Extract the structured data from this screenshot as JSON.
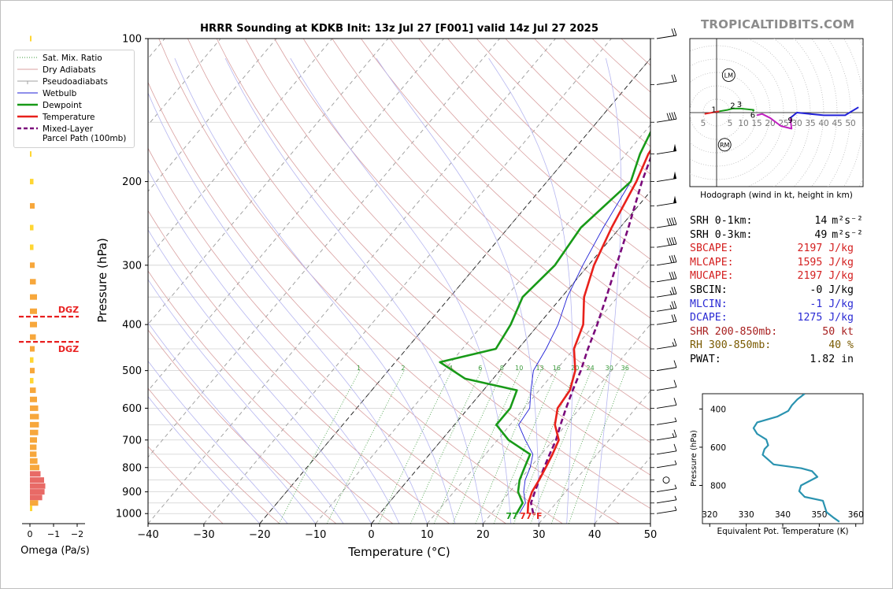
{
  "brand": "TROPICALTIDBITS.COM",
  "chart_data": [
    {
      "type": "line",
      "title": "HRRR Sounding at KDKB Init: 13z Jul 27 [F001] valid 14z Jul 27 2025",
      "xlabel": "Temperature (°C)",
      "ylabel": "Pressure (hPa)",
      "xlim": [
        -40,
        50
      ],
      "ylim": [
        1050,
        100
      ],
      "y_scale": "log",
      "skew": "skew-T log-p",
      "x_ticks": [
        "−40",
        "−30",
        "−20",
        "−10",
        "0",
        "10",
        "20",
        "30",
        "40",
        "50"
      ],
      "y_ticks": [
        "100",
        "200",
        "300",
        "400",
        "500",
        "600",
        "700",
        "800",
        "900",
        "1000"
      ],
      "grid": true,
      "legend_position": "top-left",
      "legend": [
        "Sat. Mix. Ratio",
        "Dry Adiabats",
        "Pseudoadiabats",
        "Wetbulb",
        "Dewpoint",
        "Temperature",
        "Mixed-Layer\nParcel Path (100mb)"
      ],
      "mixing_ratio_labels": [
        "1",
        "2",
        "4",
        "6",
        "8",
        "10",
        "13",
        "16",
        "20",
        "24",
        "30",
        "36"
      ],
      "surface_labels": {
        "dewpoint": "77",
        "temperature": "77",
        "unit": "°F"
      },
      "colors": {
        "temperature": "#e8211b",
        "dewpoint": "#189a18",
        "wetbulb": "#1f1fd6",
        "parcel": "#7a0a7a",
        "dry_adiabat": "#d9a0a0",
        "pseudoadiabat": "#a8a8a8",
        "mixing_ratio": "#3a9a3a",
        "moist_adiabat": "#b6b6f0"
      },
      "series": [
        {
          "name": "Temperature",
          "points": [
            [
              26.5,
              1000
            ],
            [
              25,
              950
            ],
            [
              24,
              900
            ],
            [
              23.5,
              850
            ],
            [
              22.8,
              800
            ],
            [
              22,
              750
            ],
            [
              21,
              700
            ],
            [
              18,
              650
            ],
            [
              16,
              600
            ],
            [
              15.5,
              550
            ],
            [
              13.5,
              500
            ],
            [
              10,
              450
            ],
            [
              8,
              400
            ],
            [
              4,
              350
            ],
            [
              1,
              300
            ],
            [
              -1.5,
              250
            ],
            [
              -4,
              200
            ],
            [
              -6,
              175
            ],
            [
              -7,
              150
            ],
            [
              -2,
              125
            ],
            [
              0,
              100
            ]
          ]
        },
        {
          "name": "Dewpoint",
          "points": [
            [
              24.5,
              1000
            ],
            [
              24,
              950
            ],
            [
              21.5,
              900
            ],
            [
              20,
              850
            ],
            [
              19,
              800
            ],
            [
              18,
              750
            ],
            [
              12,
              700
            ],
            [
              7.5,
              650
            ],
            [
              7.5,
              600
            ],
            [
              6,
              550
            ],
            [
              -5,
              520
            ],
            [
              -12,
              480
            ],
            [
              -4,
              450
            ],
            [
              -5,
              400
            ],
            [
              -7,
              350
            ],
            [
              -6,
              300
            ],
            [
              -7,
              250
            ],
            [
              -5,
              200
            ],
            [
              -7.5,
              175
            ],
            [
              -9.5,
              150
            ],
            [
              -12,
              125
            ],
            [
              -10,
              100
            ]
          ]
        },
        {
          "name": "Wetbulb",
          "points": [
            [
              25,
              1000
            ],
            [
              24.5,
              950
            ],
            [
              22.5,
              900
            ],
            [
              21,
              850
            ],
            [
              20,
              800
            ],
            [
              18.5,
              750
            ],
            [
              15,
              700
            ],
            [
              11.5,
              650
            ],
            [
              11,
              600
            ],
            [
              8.5,
              550
            ],
            [
              6,
              500
            ],
            [
              5,
              450
            ],
            [
              3.5,
              400
            ],
            [
              1,
              350
            ],
            [
              -1,
              300
            ],
            [
              -3,
              250
            ],
            [
              -5,
              200
            ]
          ]
        },
        {
          "name": "Mixed-Layer\nParcel Path (100mb)",
          "points": [
            [
              27.5,
              1000
            ],
            [
              25.5,
              950
            ],
            [
              24.5,
              900
            ],
            [
              23.5,
              850
            ],
            [
              22.5,
              800
            ],
            [
              21.5,
              750
            ],
            [
              20.5,
              700
            ],
            [
              19,
              650
            ],
            [
              17.5,
              600
            ],
            [
              16,
              550
            ],
            [
              14.5,
              500
            ],
            [
              12.5,
              450
            ],
            [
              10.5,
              400
            ],
            [
              8,
              350
            ],
            [
              5,
              300
            ],
            [
              1.5,
              250
            ],
            [
              -3,
              200
            ],
            [
              -8,
              150
            ],
            [
              -12,
              125
            ],
            [
              -15,
              100
            ]
          ]
        }
      ]
    },
    {
      "type": "bar",
      "xlabel": "Omega (Pa/s)",
      "x_ticks": [
        "0",
        "−1",
        "−2"
      ],
      "xlim": [
        0,
        -2
      ],
      "orientation": "horizontal",
      "dgz_label": "DGZ",
      "dgz_pressure": [
        385,
        435
      ],
      "colors": {
        "weak": "#ffd633",
        "moderate": "#f7a73c",
        "strong": "#e86a66",
        "dgz": "#e82020"
      },
      "bars": [
        {
          "p": 100,
          "omega": -0.05
        },
        {
          "p": 125,
          "omega": -0.05
        },
        {
          "p": 150,
          "omega": -0.05
        },
        {
          "p": 175,
          "omega": -0.05
        },
        {
          "p": 200,
          "omega": -0.15
        },
        {
          "p": 225,
          "omega": -0.2
        },
        {
          "p": 250,
          "omega": -0.15
        },
        {
          "p": 275,
          "omega": -0.15
        },
        {
          "p": 300,
          "omega": -0.2
        },
        {
          "p": 325,
          "omega": -0.25
        },
        {
          "p": 350,
          "omega": -0.3
        },
        {
          "p": 375,
          "omega": -0.3
        },
        {
          "p": 400,
          "omega": -0.3
        },
        {
          "p": 425,
          "omega": -0.25
        },
        {
          "p": 450,
          "omega": -0.2
        },
        {
          "p": 475,
          "omega": -0.15
        },
        {
          "p": 500,
          "omega": -0.2
        },
        {
          "p": 525,
          "omega": -0.15
        },
        {
          "p": 550,
          "omega": -0.25
        },
        {
          "p": 575,
          "omega": -0.3
        },
        {
          "p": 600,
          "omega": -0.35
        },
        {
          "p": 625,
          "omega": -0.38
        },
        {
          "p": 650,
          "omega": -0.38
        },
        {
          "p": 675,
          "omega": -0.35
        },
        {
          "p": 700,
          "omega": -0.3
        },
        {
          "p": 725,
          "omega": -0.28
        },
        {
          "p": 750,
          "omega": -0.28
        },
        {
          "p": 775,
          "omega": -0.32
        },
        {
          "p": 800,
          "omega": -0.4
        },
        {
          "p": 825,
          "omega": -0.45
        },
        {
          "p": 850,
          "omega": -0.6
        },
        {
          "p": 875,
          "omega": -0.65
        },
        {
          "p": 900,
          "omega": -0.62
        },
        {
          "p": 925,
          "omega": -0.52
        },
        {
          "p": 950,
          "omega": -0.35
        },
        {
          "p": 975,
          "omega": -0.1
        }
      ]
    },
    {
      "type": "line",
      "xlabel": "Hodograph (wind in kt, height in km)",
      "ring_labels": [
        "5",
        "5",
        "10",
        "15",
        "20",
        "25",
        "30",
        "35",
        "40",
        "45",
        "50"
      ],
      "markers": [
        "LM",
        "RM"
      ],
      "height_labels": [
        "1",
        "2",
        "3",
        "6",
        "9"
      ],
      "xlim": [
        -10,
        55
      ],
      "ylim": [
        -28,
        28
      ],
      "colors": {
        "0-1km": "#e82020",
        "1-3km": "#189a18",
        "3-6km": "#189a18",
        "6-9km": "#c020c0",
        "9-12km": "#2020d8"
      },
      "segments": [
        {
          "name": "0-1km",
          "points": [
            [
              -4.5,
              -0.5
            ],
            [
              1,
              0.5
            ]
          ]
        },
        {
          "name": "1-3km",
          "points": [
            [
              1,
              0.5
            ],
            [
              4,
              1
            ],
            [
              6,
              1.5
            ],
            [
              9,
              1.5
            ],
            [
              14,
              1
            ]
          ]
        },
        {
          "name": "3-6km",
          "points": [
            [
              14,
              1
            ],
            [
              13.5,
              0.5
            ]
          ]
        },
        {
          "name": "6-9km",
          "points": [
            [
              15,
              -1
            ],
            [
              17,
              -0.5
            ],
            [
              20,
              -2
            ],
            [
              24,
              -5
            ],
            [
              28,
              -6
            ],
            [
              27.5,
              -2
            ]
          ]
        },
        {
          "name": "9-12km",
          "points": [
            [
              27.5,
              -2
            ],
            [
              30,
              0
            ],
            [
              35,
              -0.5
            ],
            [
              40,
              -1
            ],
            [
              48,
              -1
            ],
            [
              53,
              2
            ]
          ]
        }
      ],
      "lm": [
        4.5,
        14
      ],
      "rm": [
        3,
        -12
      ]
    },
    {
      "type": "line",
      "xlabel": "Equivalent Pot. Temperature (K)",
      "ylabel": "Pressure (hPa)",
      "x_ticks": [
        "320",
        "330",
        "340",
        "350",
        "360"
      ],
      "y_ticks": [
        "400",
        "600",
        "800"
      ],
      "xlim": [
        318,
        362
      ],
      "ylim": [
        1000,
        320
      ],
      "color": "#2a93b0",
      "points": [
        [
          346,
          320
        ],
        [
          344,
          350
        ],
        [
          342.5,
          380
        ],
        [
          341.5,
          410
        ],
        [
          338.5,
          440
        ],
        [
          333,
          470
        ],
        [
          332,
          500
        ],
        [
          333,
          530
        ],
        [
          335.5,
          560
        ],
        [
          336,
          590
        ],
        [
          335,
          610
        ],
        [
          334.5,
          640
        ],
        [
          336,
          665
        ],
        [
          337.5,
          690
        ],
        [
          345,
          710
        ],
        [
          348,
          725
        ],
        [
          349.5,
          755
        ],
        [
          347,
          780
        ],
        [
          345,
          800
        ],
        [
          344.5,
          830
        ],
        [
          346,
          860
        ],
        [
          351,
          880
        ],
        [
          351.5,
          910
        ],
        [
          352,
          940
        ],
        [
          354,
          970
        ],
        [
          355.5,
          990
        ]
      ]
    }
  ],
  "hodograph_caption": "Hodograph (wind in kt, height in km)",
  "stats": [
    {
      "label": "SRH 0-1km:",
      "value": "14",
      "unit": "m²s⁻²",
      "color": "#000000"
    },
    {
      "label": "SRH 0-3km:",
      "value": "49",
      "unit": "m²s⁻²",
      "color": "#000000"
    },
    {
      "label": "SBCAPE:",
      "value": "2197 J/kg",
      "unit": "",
      "color": "#d42020"
    },
    {
      "label": "MLCAPE:",
      "value": "1595 J/kg",
      "unit": "",
      "color": "#d42020"
    },
    {
      "label": "MUCAPE:",
      "value": "2197 J/kg",
      "unit": "",
      "color": "#d42020"
    },
    {
      "label": "SBCIN:",
      "value": "-0 J/kg",
      "unit": "",
      "color": "#000000"
    },
    {
      "label": "MLCIN:",
      "value": "-1 J/kg",
      "unit": "",
      "color": "#2a2ad4"
    },
    {
      "label": "DCAPE:",
      "value": "1275 J/kg",
      "unit": "",
      "color": "#2a2ad4"
    },
    {
      "label": "SHR 200-850mb:",
      "value": "50 kt",
      "unit": "",
      "color": "#a82020"
    },
    {
      "label": "RH 300-850mb:",
      "value": "40 %",
      "unit": "",
      "color": "#7a5a00"
    },
    {
      "label": "PWAT:",
      "value": "1.82 in",
      "unit": "",
      "color": "#000000"
    }
  ],
  "wind_barbs": [
    {
      "p": 100,
      "flags": 0,
      "full": 2,
      "half": 0
    },
    {
      "p": 125,
      "flags": 0,
      "full": 2,
      "half": 0
    },
    {
      "p": 150,
      "flags": 0,
      "full": 4,
      "half": 0
    },
    {
      "p": 175,
      "flags": 1,
      "full": 0,
      "half": 0
    },
    {
      "p": 200,
      "flags": 1,
      "full": 0,
      "half": 0
    },
    {
      "p": 225,
      "flags": 1,
      "full": 0,
      "half": 0
    },
    {
      "p": 250,
      "flags": 0,
      "full": 4,
      "half": 0
    },
    {
      "p": 275,
      "flags": 0,
      "full": 4,
      "half": 0
    },
    {
      "p": 300,
      "flags": 0,
      "full": 3,
      "half": 0
    },
    {
      "p": 325,
      "flags": 0,
      "full": 3,
      "half": 0
    },
    {
      "p": 350,
      "flags": 0,
      "full": 2,
      "half": 1
    },
    {
      "p": 375,
      "flags": 0,
      "full": 2,
      "half": 1
    },
    {
      "p": 400,
      "flags": 0,
      "full": 2,
      "half": 0
    },
    {
      "p": 450,
      "flags": 0,
      "full": 1,
      "half": 1
    },
    {
      "p": 500,
      "flags": 0,
      "full": 1,
      "half": 0
    },
    {
      "p": 550,
      "flags": 0,
      "full": 1,
      "half": 0
    },
    {
      "p": 600,
      "flags": 0,
      "full": 1,
      "half": 0
    },
    {
      "p": 650,
      "flags": 0,
      "full": 0,
      "half": 1
    },
    {
      "p": 700,
      "flags": 0,
      "full": 1,
      "half": 1
    },
    {
      "p": 750,
      "flags": 0,
      "full": 1,
      "half": 0
    },
    {
      "p": 800,
      "flags": 0,
      "full": 0,
      "half": 1
    },
    {
      "p": 850,
      "flags": 0,
      "full": 0,
      "half": 0,
      "calm": true
    },
    {
      "p": 900,
      "flags": 0,
      "full": 0,
      "half": 1
    },
    {
      "p": 950,
      "flags": 0,
      "full": 0,
      "half": 1
    },
    {
      "p": 1000,
      "flags": 0,
      "full": 0,
      "half": 1
    }
  ]
}
